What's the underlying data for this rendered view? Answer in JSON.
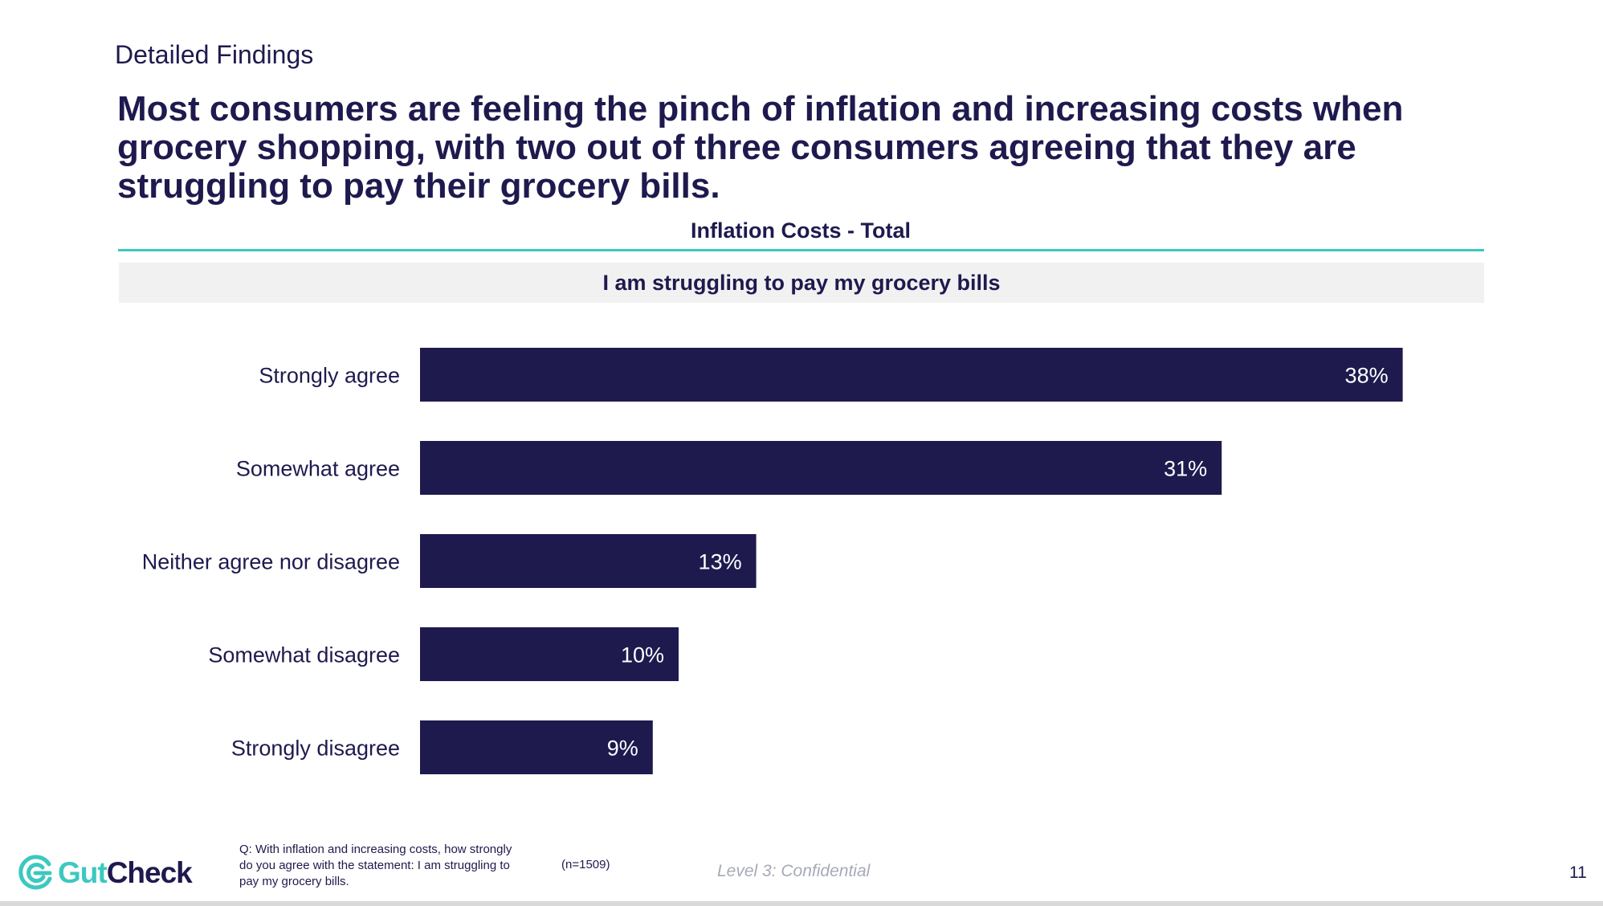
{
  "header": {
    "section_label": "Detailed Findings",
    "headline": "Most consumers are feeling the pinch of inflation and increasing costs when grocery shopping, with two out of three consumers agreeing that they are struggling to pay their grocery bills."
  },
  "chart_data": {
    "type": "bar",
    "orientation": "horizontal",
    "title": "Inflation Costs - Total",
    "subtitle": "I am struggling to pay my grocery bills",
    "categories": [
      "Strongly agree",
      "Somewhat agree",
      "Neither agree nor disagree",
      "Somewhat disagree",
      "Strongly disagree"
    ],
    "values": [
      38,
      31,
      13,
      10,
      9
    ],
    "value_labels": [
      "38%",
      "31%",
      "13%",
      "10%",
      "9%"
    ],
    "unit": "%",
    "xlabel": "",
    "ylabel": "",
    "grid": false,
    "legend": "none",
    "bar_color": "#1e1a4e"
  },
  "footer": {
    "logo_part1": "Gut",
    "logo_part2": "Check",
    "question": "Q: With inflation and increasing costs, how strongly do you agree with the statement: I am struggling to pay my grocery bills.",
    "sample_size": "(n=1509)",
    "confidentiality": "Level 3: Confidential",
    "page_number": "11"
  },
  "colors": {
    "navy": "#1e1a4e",
    "teal": "#3cc8c0",
    "band_gray": "#f1f1f1",
    "confidential_gray": "#a7aab6"
  },
  "icons": {
    "logo_mark": "gutcheck-logo-icon"
  }
}
